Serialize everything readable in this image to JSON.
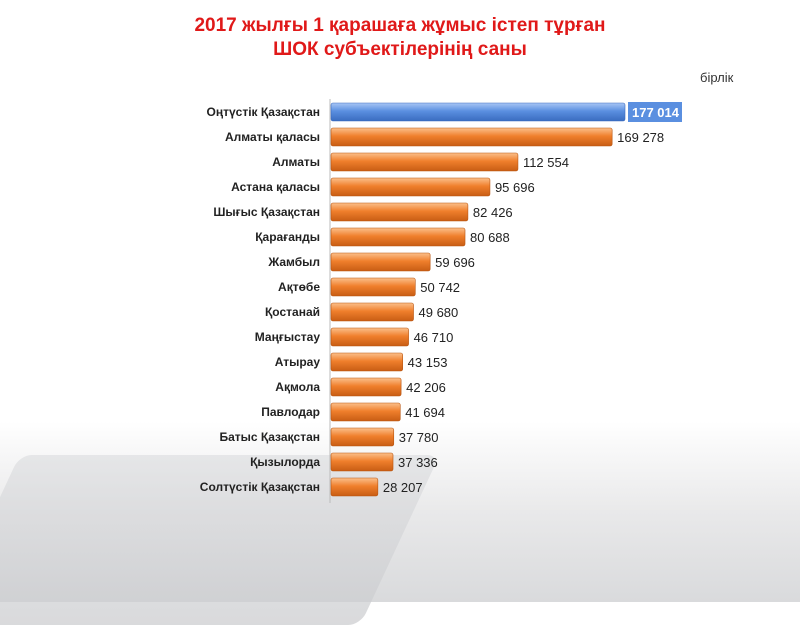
{
  "chart_data": {
    "type": "bar",
    "orientation": "horizontal",
    "title_lines": [
      "2017 жылғы 1 қарашаға жұмыс істеп тұрған",
      "ШОК субъектілерінің саны"
    ],
    "unit": "бірлік",
    "categories": [
      "Оңтүстік Қазақстан",
      "Алматы қаласы",
      "Алматы",
      "Астана қаласы",
      "Шығыс  Қазақстан",
      "Қарағанды",
      "Жамбыл",
      "Ақтөбе",
      "Қостанай",
      "Маңғыстау",
      "Атырау",
      "Ақмола",
      "Павлодар",
      "Батыс Қазақстан",
      "Қызылорда",
      "Солтүстік  Қазақстан"
    ],
    "values": [
      177014,
      169278,
      112554,
      95696,
      82426,
      80688,
      59696,
      50742,
      49680,
      46710,
      43153,
      42206,
      41694,
      37780,
      37336,
      28207
    ],
    "value_labels": [
      "177 014",
      "169 278",
      "112 554",
      "95 696",
      "82 426",
      "80 688",
      "59 696",
      "50 742",
      "49 680",
      "46 710",
      "43 153",
      "42 206",
      "41 694",
      "37 780",
      "37 336",
      "28 207"
    ],
    "highlight_index": 0,
    "colors": {
      "bar": "#f07f2c",
      "highlight": "#5a8fe0",
      "title": "#e01919"
    },
    "grid": false,
    "legend": "none"
  }
}
